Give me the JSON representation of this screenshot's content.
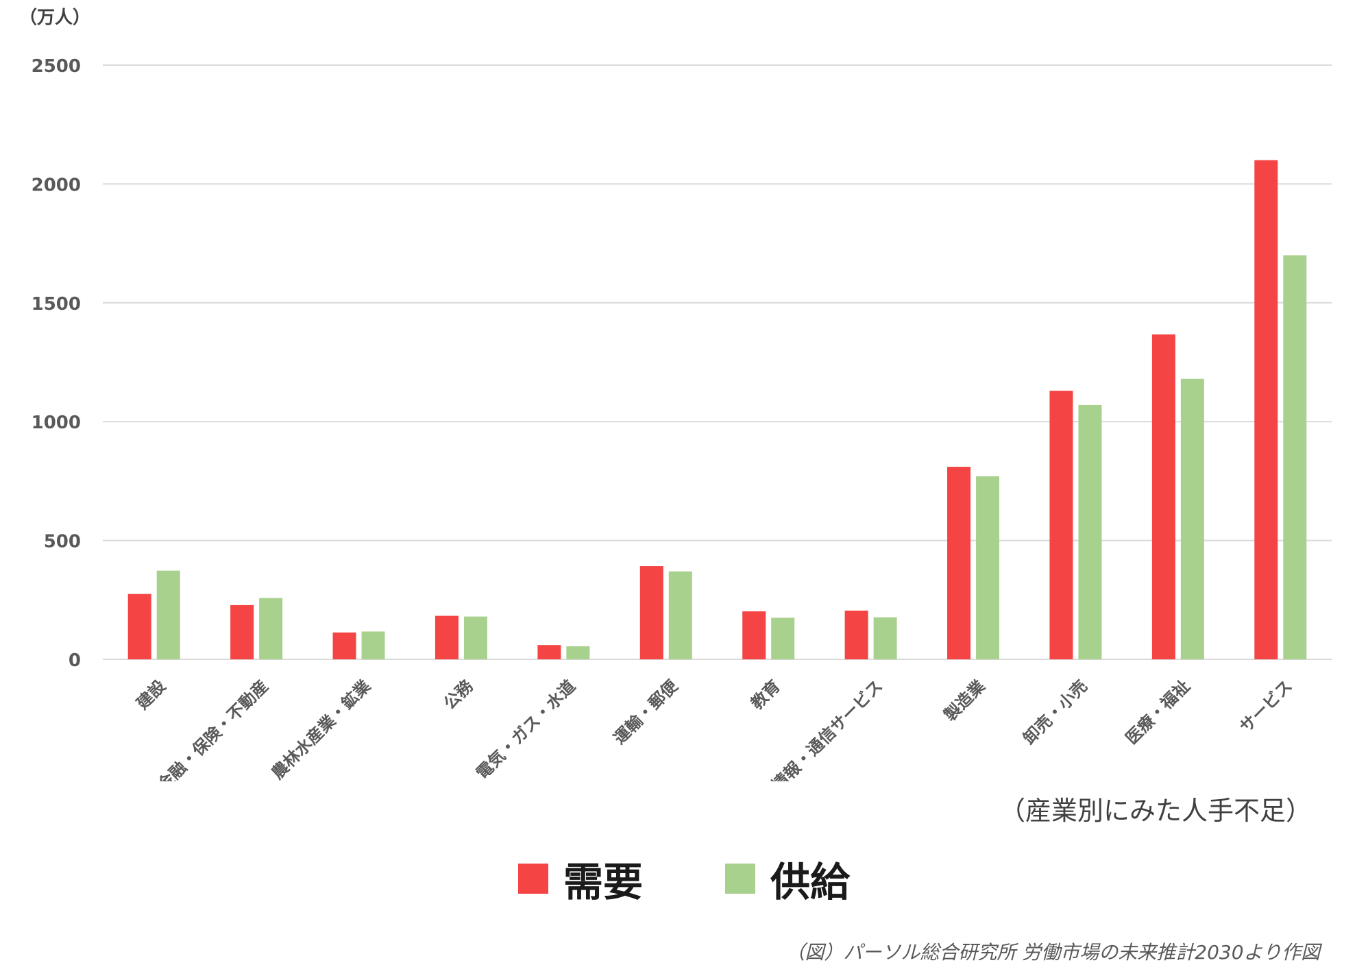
{
  "chart_data": {
    "type": "bar",
    "ylabel": "（万人）",
    "ylim": [
      0,
      2500
    ],
    "yticks": [
      0,
      500,
      1000,
      1500,
      2000,
      2500
    ],
    "grid": true,
    "legend_position": "bottom-center",
    "categories": [
      "建設",
      "金融・保険・不動産",
      "農林水産業・鉱業",
      "公務",
      "電気・ガス・水道",
      "運輸・郵便",
      "教育",
      "情報・通信サービス",
      "製造業",
      "卸売・小売",
      "医療・福祉",
      "サービス"
    ],
    "series": [
      {
        "name": "需要",
        "color": "#f44444",
        "values": [
          275,
          228,
          113,
          183,
          60,
          392,
          202,
          205,
          810,
          1130,
          1367,
          2100
        ]
      },
      {
        "name": "供給",
        "color": "#a9d18e",
        "values": [
          373,
          258,
          117,
          180,
          55,
          370,
          175,
          177,
          770,
          1070,
          1180,
          1700
        ]
      }
    ],
    "subtitle": "（産業別にみた人手不足）",
    "source": "（図）パーソル総合研究所 労働市場の未来推計2030より作図"
  }
}
